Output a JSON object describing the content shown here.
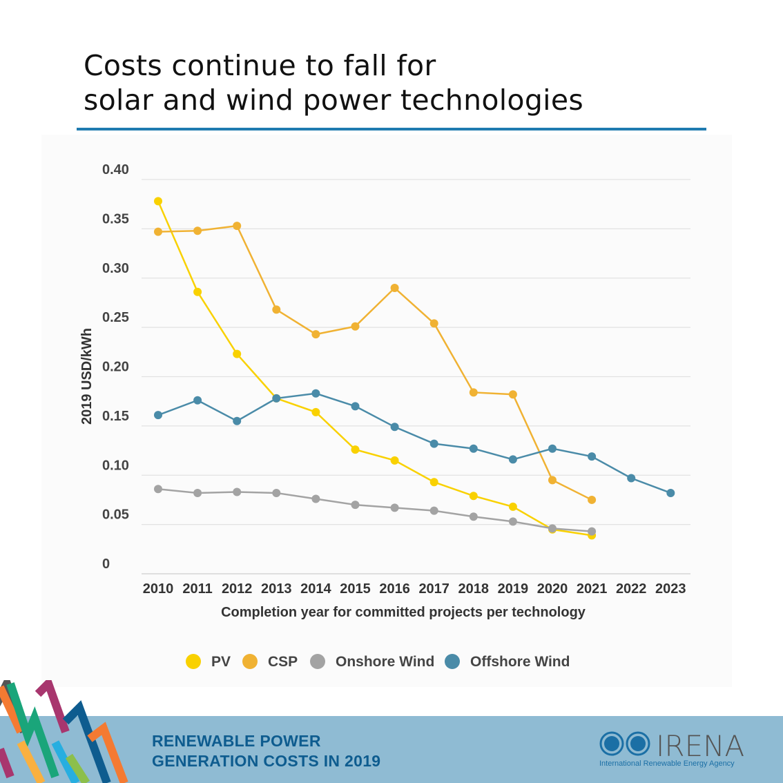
{
  "title_lines": [
    "Costs continue to fall for",
    "solar and wind power technologies"
  ],
  "footer": {
    "line1": "RENEWABLE POWER",
    "line2": "GENERATION COSTS IN 2019"
  },
  "logo": {
    "word": "IRENA",
    "subtitle": "International Renewable Energy Agency"
  },
  "chart_data": {
    "type": "line",
    "title": "Costs continue to fall for solar and wind power technologies",
    "xlabel": "Completion year for committed projects per technology",
    "ylabel": "2019 USD/kWh",
    "ylim": [
      0,
      0.4
    ],
    "yticks": [
      "0",
      "0.05",
      "0.10",
      "0.15",
      "0.20",
      "0.25",
      "0.30",
      "0.35",
      "0.40"
    ],
    "ytick_values": [
      0,
      0.05,
      0.1,
      0.15,
      0.2,
      0.25,
      0.3,
      0.35,
      0.4
    ],
    "x": [
      "2010",
      "2011",
      "2012",
      "2013",
      "2014",
      "2015",
      "2016",
      "2017",
      "2018",
      "2019",
      "2020",
      "2021",
      "2022",
      "2023"
    ],
    "grid": true,
    "legend_position": "bottom",
    "series": [
      {
        "name": "PV",
        "color": "#f9d100",
        "values": [
          0.378,
          0.286,
          0.223,
          0.178,
          0.164,
          0.126,
          0.115,
          0.093,
          0.079,
          0.068,
          0.045,
          0.039,
          null,
          null
        ]
      },
      {
        "name": "CSP",
        "color": "#f0b233",
        "values": [
          0.347,
          0.348,
          0.353,
          0.268,
          0.243,
          0.251,
          0.29,
          0.254,
          0.184,
          0.182,
          0.095,
          0.075,
          null,
          null
        ]
      },
      {
        "name": "Onshore Wind",
        "color": "#a3a3a3",
        "values": [
          0.086,
          0.082,
          0.083,
          0.082,
          0.076,
          0.07,
          0.067,
          0.064,
          0.058,
          0.053,
          0.046,
          0.043,
          null,
          null
        ]
      },
      {
        "name": "Offshore Wind",
        "color": "#4a8ba8",
        "values": [
          0.161,
          0.176,
          0.155,
          0.178,
          0.183,
          0.17,
          0.149,
          0.132,
          0.127,
          0.116,
          0.127,
          0.119,
          0.097,
          0.082
        ]
      }
    ]
  }
}
